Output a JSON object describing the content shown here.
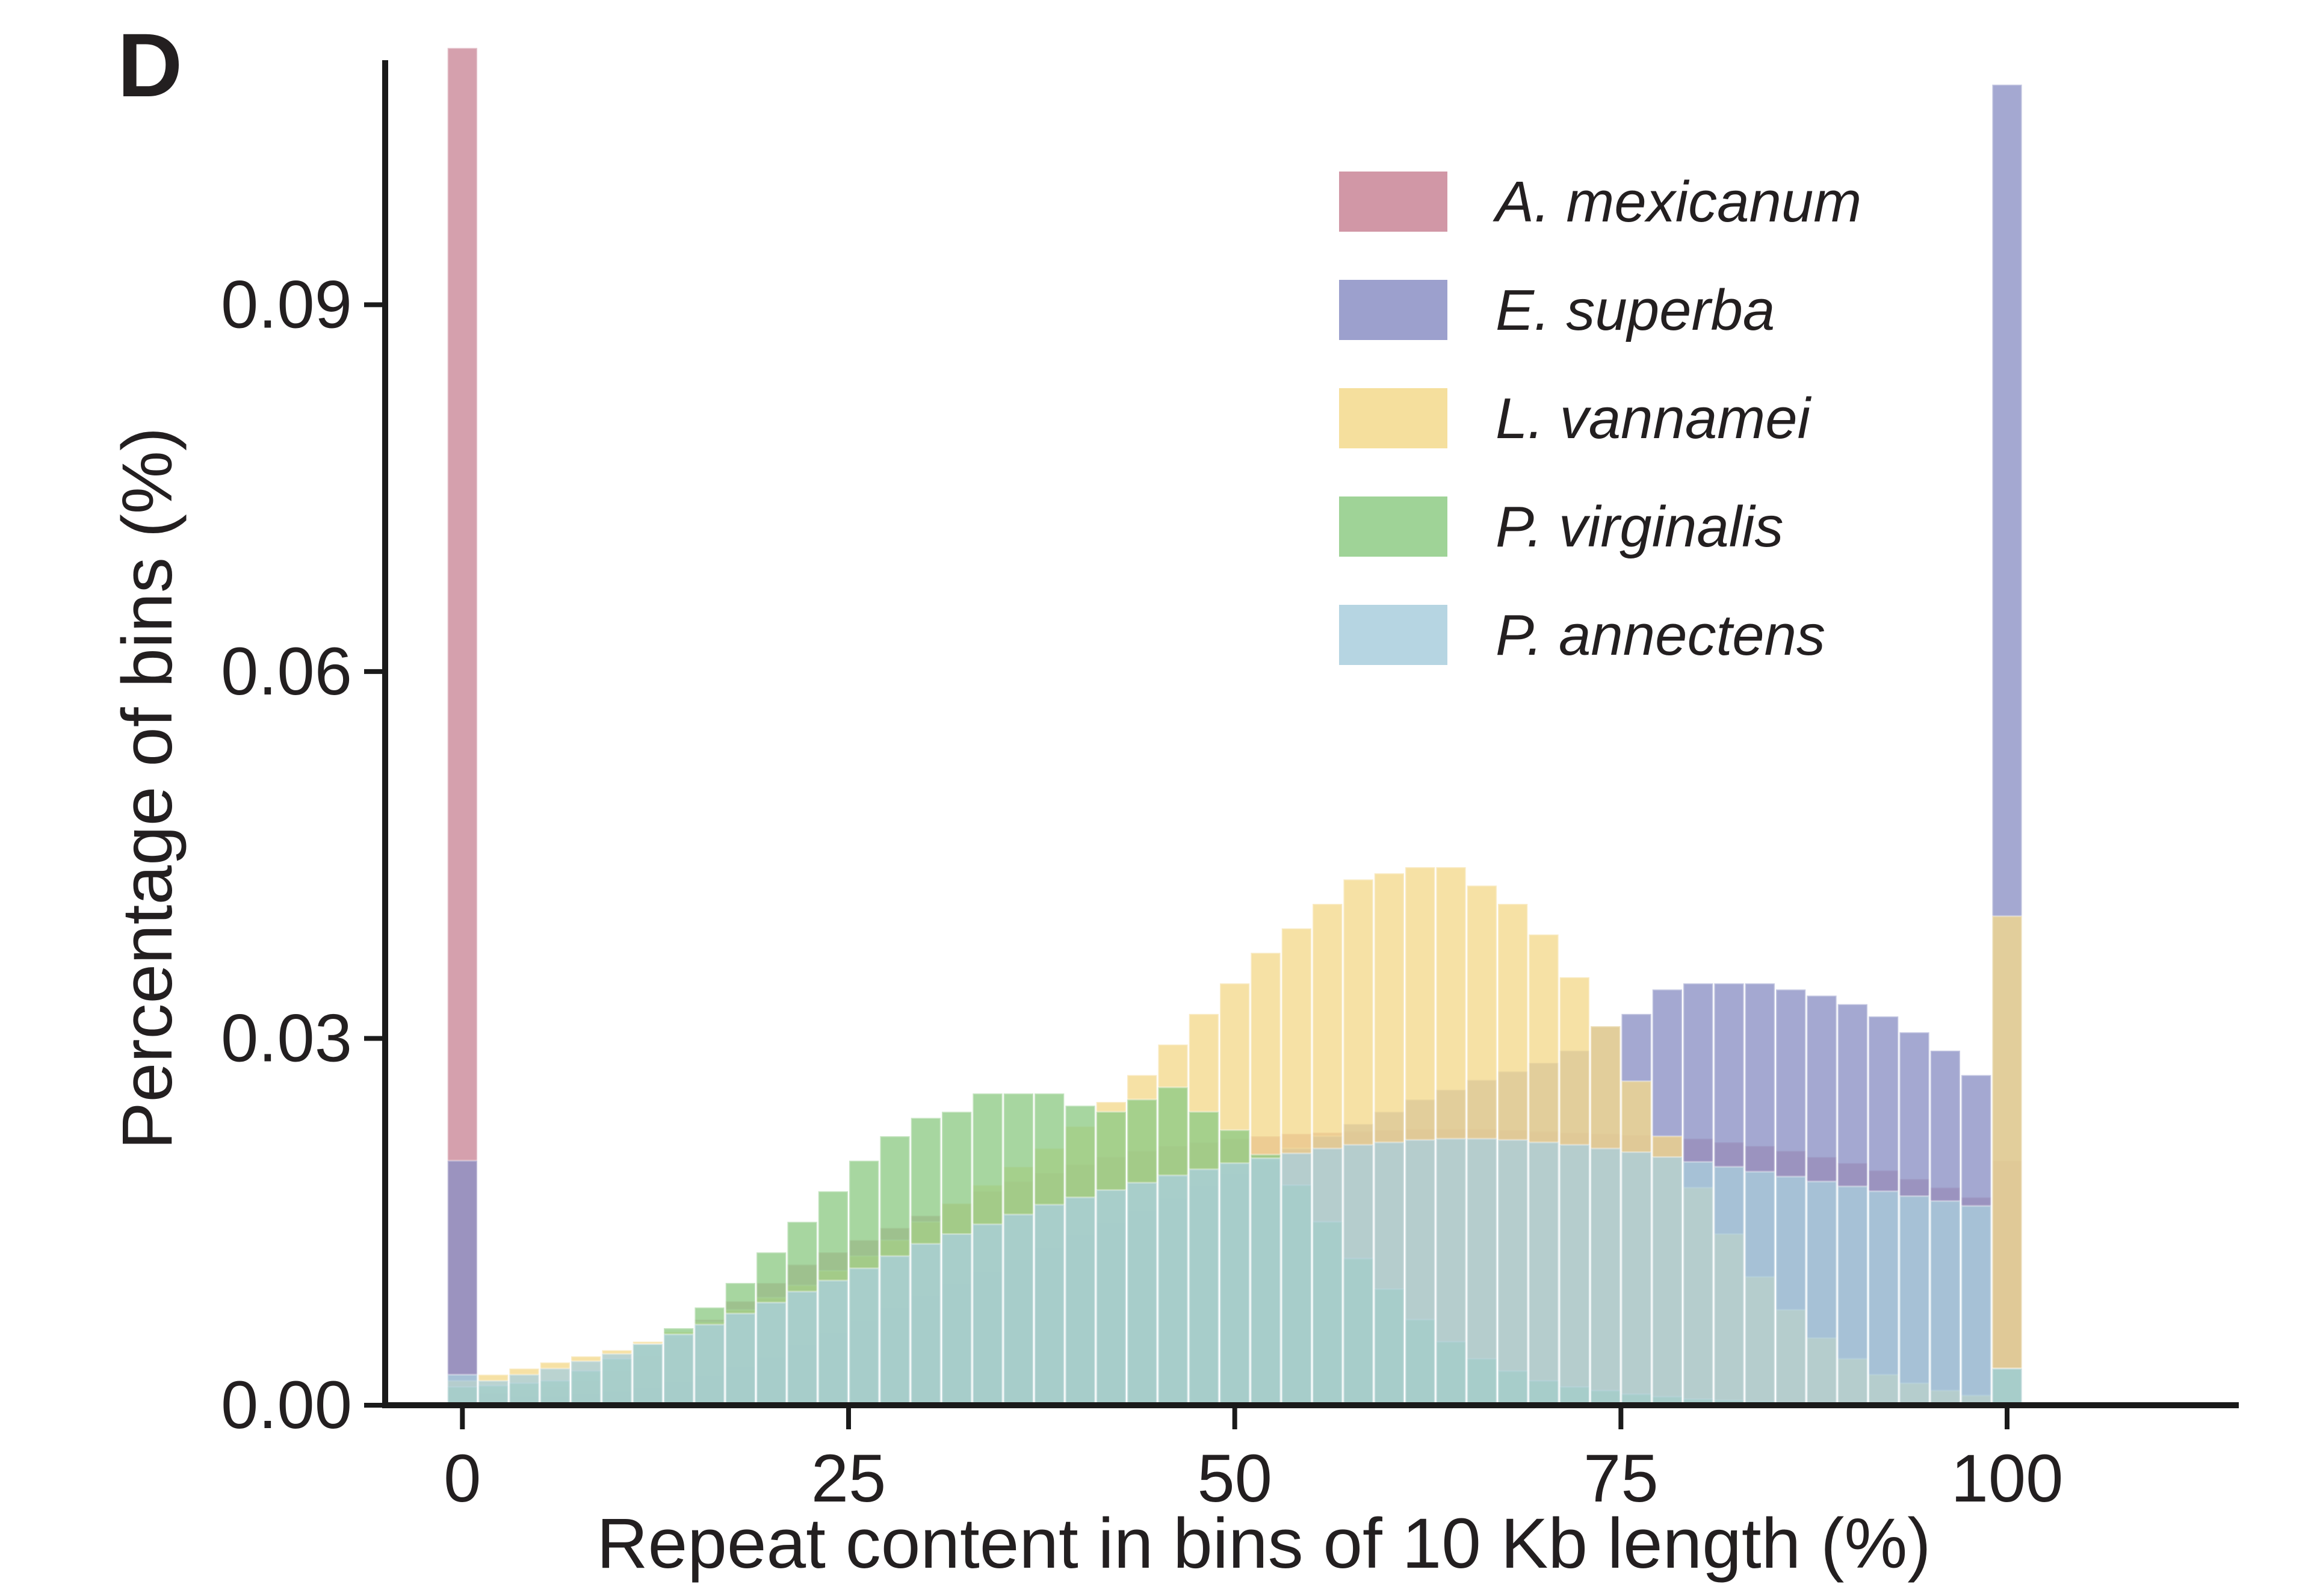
{
  "panel_label": "D",
  "chart_data": {
    "type": "bar",
    "title": "",
    "xlabel": "Repeat content in bins of 10 Kb length (%)",
    "ylabel": "Percentage of bins (%)",
    "xlim": [
      -5,
      115
    ],
    "ylim": [
      0,
      0.11
    ],
    "x_ticks": [
      0,
      25,
      50,
      75,
      100
    ],
    "x_tick_labels": [
      "0",
      "25",
      "50",
      "75",
      "100"
    ],
    "y_ticks": [
      0,
      0.03,
      0.06,
      0.09
    ],
    "y_tick_labels": [
      "0.00",
      "0.03",
      "0.06",
      "0.09"
    ],
    "bin_width": 2,
    "bin_centers": [
      0,
      2,
      4,
      6,
      8,
      10,
      12,
      14,
      16,
      18,
      20,
      22,
      24,
      26,
      28,
      30,
      32,
      34,
      36,
      38,
      40,
      42,
      44,
      46,
      48,
      50,
      52,
      54,
      56,
      58,
      60,
      62,
      64,
      66,
      68,
      70,
      72,
      74,
      76,
      78,
      80,
      82,
      84,
      86,
      88,
      90,
      92,
      94,
      96,
      98,
      100
    ],
    "legend_position": "top-right",
    "series": [
      {
        "name": "A. mexicanum",
        "color": "#c98596",
        "values": [
          0.111,
          0.001,
          0.0012,
          0.0015,
          0.002,
          0.0028,
          0.004,
          0.0055,
          0.007,
          0.0085,
          0.01,
          0.0115,
          0.0125,
          0.0135,
          0.0145,
          0.0155,
          0.0165,
          0.0175,
          0.0183,
          0.019,
          0.0197,
          0.0203,
          0.0208,
          0.0212,
          0.0215,
          0.0218,
          0.022,
          0.0222,
          0.0223,
          0.0224,
          0.0225,
          0.0226,
          0.0226,
          0.0226,
          0.0225,
          0.0224,
          0.0223,
          0.0222,
          0.0221,
          0.022,
          0.0218,
          0.0215,
          0.0212,
          0.0208,
          0.0203,
          0.0198,
          0.0192,
          0.0185,
          0.0178,
          0.017,
          0.02
        ]
      },
      {
        "name": "E. superba",
        "color": "#8b8fc4",
        "values": [
          0.02,
          0.001,
          0.0008,
          0.0008,
          0.001,
          0.0012,
          0.0015,
          0.002,
          0.0025,
          0.0032,
          0.004,
          0.005,
          0.006,
          0.007,
          0.008,
          0.009,
          0.01,
          0.011,
          0.012,
          0.013,
          0.014,
          0.015,
          0.016,
          0.017,
          0.018,
          0.019,
          0.02,
          0.021,
          0.022,
          0.023,
          0.024,
          0.025,
          0.0258,
          0.0266,
          0.0273,
          0.028,
          0.029,
          0.031,
          0.032,
          0.034,
          0.0345,
          0.0345,
          0.0345,
          0.034,
          0.0335,
          0.0328,
          0.0318,
          0.0305,
          0.029,
          0.027,
          0.108
        ]
      },
      {
        "name": "L. vannamei",
        "color": "#f3d98c",
        "values": [
          0.002,
          0.0025,
          0.003,
          0.0035,
          0.004,
          0.0045,
          0.0052,
          0.006,
          0.0068,
          0.0078,
          0.0088,
          0.0098,
          0.011,
          0.0122,
          0.0135,
          0.015,
          0.0165,
          0.018,
          0.0195,
          0.021,
          0.0228,
          0.0248,
          0.027,
          0.0295,
          0.032,
          0.0345,
          0.037,
          0.039,
          0.041,
          0.043,
          0.0435,
          0.044,
          0.044,
          0.0425,
          0.041,
          0.0385,
          0.035,
          0.031,
          0.0265,
          0.022,
          0.0178,
          0.014,
          0.0105,
          0.0078,
          0.0055,
          0.0038,
          0.0025,
          0.0018,
          0.0012,
          0.0008,
          0.04
        ]
      },
      {
        "name": "P. virginalis",
        "color": "#8ecb85",
        "values": [
          0.0015,
          0.0016,
          0.0018,
          0.002,
          0.0028,
          0.0038,
          0.005,
          0.0063,
          0.008,
          0.01,
          0.0125,
          0.015,
          0.0175,
          0.02,
          0.022,
          0.0235,
          0.024,
          0.0255,
          0.0255,
          0.0255,
          0.0245,
          0.024,
          0.025,
          0.026,
          0.024,
          0.0225,
          0.0205,
          0.018,
          0.015,
          0.012,
          0.0095,
          0.007,
          0.0052,
          0.0038,
          0.0028,
          0.002,
          0.0015,
          0.0012,
          0.0009,
          0.0007,
          0.0005,
          0.0004,
          0.0003,
          0.0002,
          0.0002,
          0.0001,
          0.0001,
          0.0001,
          0.0001,
          0.0,
          0.003
        ]
      },
      {
        "name": "P. annectens",
        "color": "#a9cedd",
        "values": [
          0.0025,
          0.002,
          0.0025,
          0.003,
          0.0036,
          0.0042,
          0.005,
          0.0058,
          0.0066,
          0.0075,
          0.0084,
          0.0093,
          0.0102,
          0.0112,
          0.0122,
          0.0132,
          0.014,
          0.0148,
          0.0156,
          0.0164,
          0.017,
          0.0176,
          0.0182,
          0.0188,
          0.0193,
          0.0198,
          0.0202,
          0.0206,
          0.021,
          0.0213,
          0.0215,
          0.0217,
          0.0218,
          0.0218,
          0.0217,
          0.0215,
          0.0213,
          0.021,
          0.0207,
          0.0203,
          0.0199,
          0.0195,
          0.0191,
          0.0187,
          0.0183,
          0.0179,
          0.0175,
          0.0171,
          0.0167,
          0.0163,
          0.003
        ]
      }
    ]
  }
}
